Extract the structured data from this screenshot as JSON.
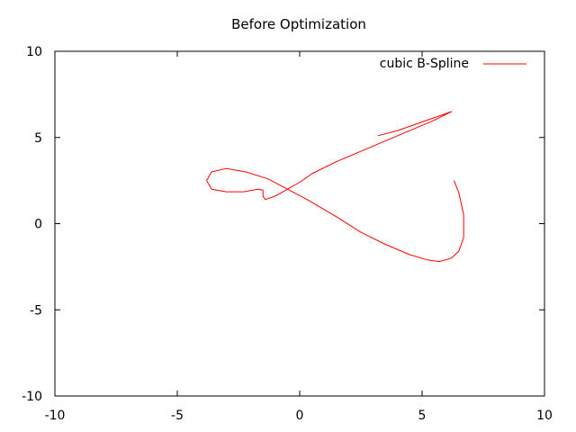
{
  "chart_data": {
    "type": "line",
    "title": "Before Optimization",
    "xlabel": "",
    "ylabel": "",
    "xlim": [
      -10,
      10
    ],
    "ylim": [
      -10,
      10
    ],
    "xticks": [
      "-10",
      "-5",
      "0",
      "5",
      "10"
    ],
    "yticks": [
      "10",
      "5",
      "0",
      "-5",
      "-10"
    ],
    "grid": false,
    "legend_position": "top-right",
    "series": [
      {
        "name": "cubic B-Spline",
        "color": "#ff0000",
        "x": [
          3.2,
          4.0,
          5.0,
          5.8,
          6.2,
          5.5,
          4.5,
          3.5,
          2.5,
          1.5,
          0.5,
          0.0,
          -0.5,
          -1.0,
          -1.4,
          -1.5,
          -1.5,
          -1.7,
          -2.3,
          -3.0,
          -3.6,
          -3.8,
          -3.6,
          -3.0,
          -2.2,
          -1.3,
          -0.5,
          0.3,
          1.5,
          2.5,
          3.5,
          4.5,
          5.2,
          5.7,
          6.2,
          6.5,
          6.7,
          6.7,
          6.5,
          6.3
        ],
        "y": [
          5.1,
          5.4,
          5.9,
          6.3,
          6.5,
          6.0,
          5.4,
          4.8,
          4.2,
          3.6,
          2.9,
          2.4,
          2.0,
          1.6,
          1.4,
          1.6,
          1.95,
          2.0,
          1.85,
          1.85,
          2.0,
          2.5,
          3.0,
          3.2,
          3.0,
          2.6,
          2.0,
          1.4,
          0.4,
          -0.5,
          -1.2,
          -1.8,
          -2.1,
          -2.2,
          -2.0,
          -1.6,
          -0.8,
          0.5,
          1.8,
          2.5
        ]
      }
    ]
  }
}
